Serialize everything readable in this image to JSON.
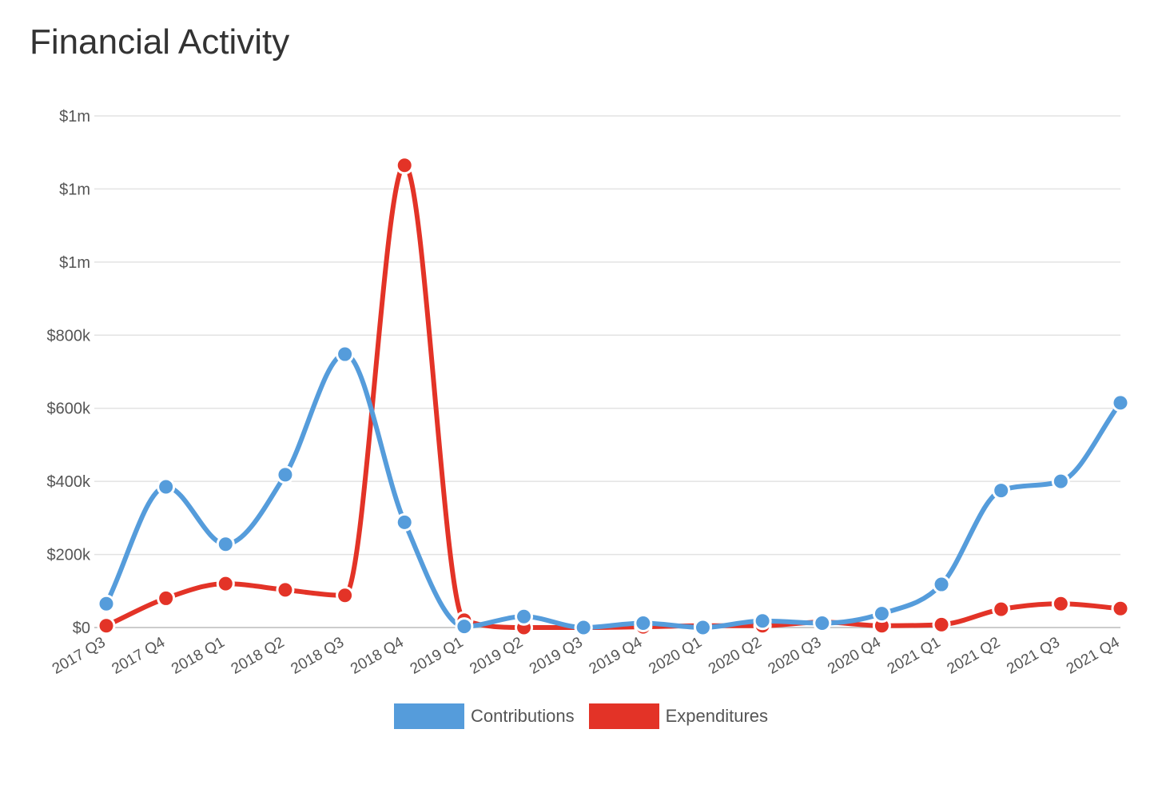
{
  "title": "Financial Activity",
  "chart_data": {
    "type": "line",
    "categories": [
      "2017 Q3",
      "2017 Q4",
      "2018 Q1",
      "2018 Q2",
      "2018 Q3",
      "2018 Q4",
      "2019 Q1",
      "2019 Q2",
      "2019 Q3",
      "2019 Q4",
      "2020 Q1",
      "2020 Q2",
      "2020 Q3",
      "2020 Q4",
      "2021 Q1",
      "2021 Q2",
      "2021 Q3",
      "2021 Q4"
    ],
    "series": [
      {
        "name": "Contributions",
        "color": "#559cdb",
        "values": [
          65000,
          385000,
          228000,
          418000,
          748000,
          288000,
          3000,
          30000,
          0,
          12000,
          0,
          18000,
          12000,
          38000,
          118000,
          375000,
          400000,
          615000
        ]
      },
      {
        "name": "Expenditures",
        "color": "#e33327",
        "values": [
          5000,
          80000,
          120000,
          103000,
          88000,
          1265000,
          20000,
          0,
          0,
          2000,
          5000,
          5000,
          15000,
          5000,
          8000,
          50000,
          65000,
          52000
        ]
      }
    ],
    "ylim": [
      0,
      1400000
    ],
    "yticks": [
      0,
      200000,
      400000,
      600000,
      800000,
      1000000,
      1200000,
      1400000
    ],
    "ytick_labels": [
      "$0",
      "$200k",
      "$400k",
      "$600k",
      "$800k",
      "$1m",
      "$1m",
      "$1m"
    ],
    "xlabel": "",
    "ylabel": "",
    "grid": true,
    "legend": "bottom-center"
  }
}
